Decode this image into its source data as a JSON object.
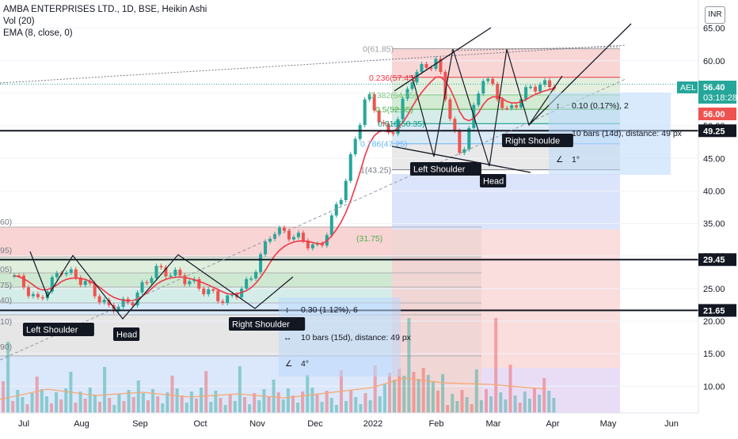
{
  "header": {
    "title": "AMBA ENTERPRISES LTD., 1D, BSE, Heikin Ashi",
    "volume_label": "Vol (20)",
    "ema_label": "EMA (8, close, 0)",
    "currency": "INR"
  },
  "price_tags": {
    "symbol": "AEL",
    "last_price": "56.40",
    "countdown": "03:18:28",
    "prev_price": "56.00",
    "level_1": "49.25",
    "level_2": "29.45",
    "level_3": "21.65"
  },
  "price_axis": [
    "65.00",
    "60.00",
    "55.00",
    "50.00",
    "45.00",
    "40.00",
    "35.00",
    "30.00",
    "25.00",
    "20.00",
    "15.00",
    "10.00"
  ],
  "time_axis": [
    "Jul",
    "Aug",
    "Sep",
    "Oct",
    "Nov",
    "Dec",
    "2022",
    "Feb",
    "Mar",
    "Apr",
    "May",
    "Jun"
  ],
  "left_fib_labels": [
    "60)",
    "95)",
    "05)",
    "75)",
    "40)",
    "10)",
    "90)"
  ],
  "fib_right": [
    {
      "ratio": "0(61.85)",
      "price": 61.85,
      "color": "#9e9e9e"
    },
    {
      "ratio": "0.236(57.45)",
      "price": 57.45,
      "color": "#f23645"
    },
    {
      "ratio": "0.382(54.75)",
      "price": 54.75,
      "color": "#81c784"
    },
    {
      "ratio": "0.5(52.55)",
      "price": 52.55,
      "color": "#4caf50"
    },
    {
      "ratio": "0.618(50.35)",
      "price": 50.35,
      "color": "#089981"
    },
    {
      "ratio": "0.786(47.25)",
      "price": 47.25,
      "color": "#64b5f6"
    },
    {
      "ratio": "1(43.25)",
      "price": 43.25,
      "color": "#787b86"
    }
  ],
  "fib_mid_label": "(31.75)",
  "pattern_labels_left": [
    "Left Shoulder",
    "Head",
    "Right Shoulder"
  ],
  "pattern_labels_right": [
    "Left Shoulder",
    "Head",
    "Right Shoulde"
  ],
  "measure_1": {
    "range": "0.30 (1.12%), 6",
    "bars": "10 bars (15d), distance: 49 px",
    "angle": "4°"
  },
  "measure_2": {
    "range": "0.10 (0.17%), 2",
    "bars": "10 bars (14d), distance: 49 px",
    "angle": "1°"
  },
  "colors": {
    "up": "#26a69a",
    "down": "#ef5350",
    "ema": "#f23645"
  },
  "chart_data": {
    "type": "candlestick",
    "title": "AMBA ENTERPRISES LTD., 1D, BSE, Heikin Ashi",
    "ylim": [
      6.5,
      68
    ],
    "x_ticks": [
      "Jul",
      "Aug",
      "Sep",
      "Oct",
      "Nov",
      "Dec",
      "2022",
      "Feb",
      "Mar",
      "Apr",
      "May",
      "Jun"
    ],
    "y_ticks": [
      65,
      60,
      55,
      50,
      45,
      40,
      35,
      30,
      25,
      20,
      15,
      10
    ],
    "price_path": [
      {
        "date": "Jul",
        "close": 27
      },
      {
        "date": "mid-Jul",
        "close": 23
      },
      {
        "date": "late-Jul",
        "close": 28
      },
      {
        "date": "Aug",
        "close": 26
      },
      {
        "date": "mid-Aug",
        "close": 22
      },
      {
        "date": "Sep",
        "close": 23
      },
      {
        "date": "mid-Sep",
        "close": 28
      },
      {
        "date": "Oct",
        "close": 27
      },
      {
        "date": "mid-Oct",
        "close": 25
      },
      {
        "date": "Nov",
        "close": 23
      },
      {
        "date": "mid-Nov",
        "close": 26
      },
      {
        "date": "Dec",
        "close": 34
      },
      {
        "date": "mid-Dec",
        "close": 33
      },
      {
        "date": "late-Dec",
        "close": 31
      },
      {
        "date": "2022",
        "close": 40
      },
      {
        "date": "mid-Jan",
        "close": 55
      },
      {
        "date": "late-Jan",
        "close": 48
      },
      {
        "date": "Feb",
        "close": 58
      },
      {
        "date": "mid-Feb",
        "close": 60
      },
      {
        "date": "late-Feb",
        "close": 45
      },
      {
        "date": "Mar",
        "close": 58
      },
      {
        "date": "mid-Mar",
        "close": 52
      },
      {
        "date": "late-Mar",
        "close": 56
      },
      {
        "date": "Apr",
        "close": 56.4
      }
    ],
    "last_price": 56.4,
    "horizontal_levels": [
      49.25,
      29.45,
      21.65
    ],
    "fib_retracement": [
      61.85,
      57.45,
      54.75,
      52.55,
      50.35,
      47.25,
      43.25
    ]
  }
}
